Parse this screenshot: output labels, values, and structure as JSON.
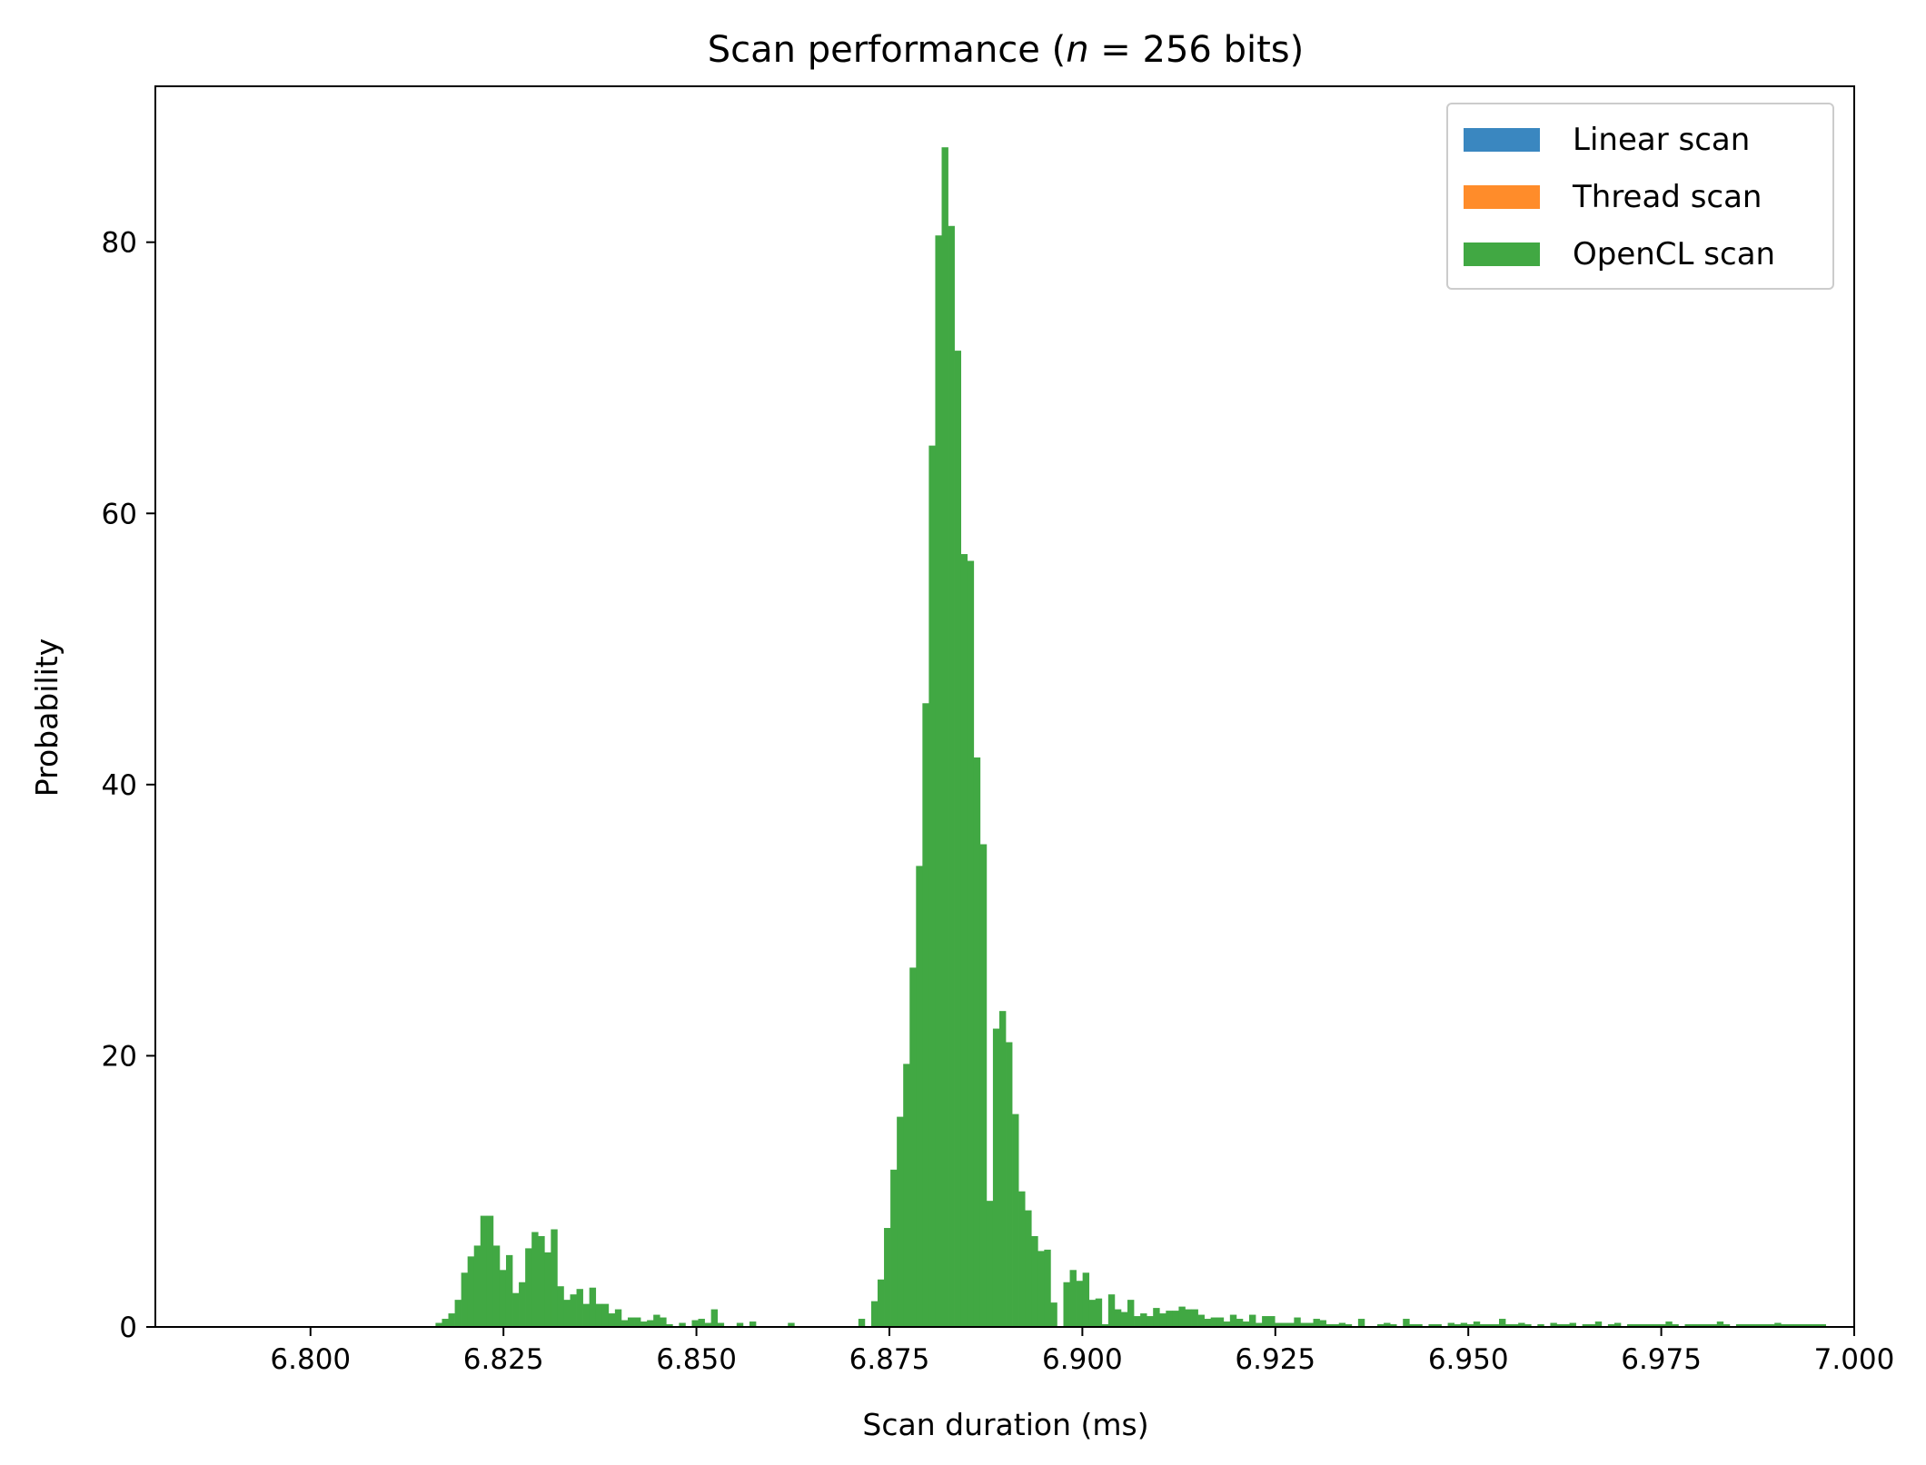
{
  "chart_data": {
    "type": "bar",
    "title_prefix": "Scan performance (",
    "title_italic": "n",
    "title_suffix": " = 256 bits)",
    "xlabel": "Scan duration (ms)",
    "ylabel": "Probability",
    "xlim": [
      6.7799,
      7.0
    ],
    "ylim": [
      0,
      91.5
    ],
    "xticks": [
      6.8,
      6.825,
      6.85,
      6.875,
      6.9,
      6.925,
      6.95,
      6.975,
      7.0
    ],
    "xtick_labels": [
      "6.800",
      "6.825",
      "6.850",
      "6.875",
      "6.900",
      "6.925",
      "6.950",
      "6.975",
      "7.000"
    ],
    "yticks": [
      0,
      20,
      40,
      60,
      80
    ],
    "ytick_labels": [
      "0",
      "20",
      "40",
      "60",
      "80"
    ],
    "grid": false,
    "legend_position": "top-right",
    "series": [
      {
        "name": "Linear scan",
        "color": "#3a87c0",
        "bins": []
      },
      {
        "name": "Thread scan",
        "color": "#ff8c2a",
        "bins": []
      },
      {
        "name": "OpenCL scan",
        "color": "#41a843",
        "bin_start": 6.8162,
        "bin_width": 0.00083,
        "values": [
          0.3,
          0.6,
          1.0,
          2.0,
          4.0,
          5.2,
          6.0,
          8.2,
          8.2,
          6.0,
          4.2,
          5.3,
          2.5,
          3.3,
          5.8,
          7.0,
          6.7,
          5.5,
          7.2,
          3.0,
          2.0,
          2.4,
          2.8,
          1.7,
          2.9,
          1.7,
          1.7,
          1.0,
          1.3,
          0.5,
          0.7,
          0.7,
          0.4,
          0.5,
          0.9,
          0.7,
          0.2,
          0,
          0.3,
          0,
          0.5,
          0.6,
          0.3,
          1.3,
          0.3,
          0,
          0,
          0.3,
          0,
          0.4,
          0,
          0,
          0,
          0,
          0,
          0.3,
          0,
          0,
          0,
          0,
          0,
          0,
          0,
          0,
          0,
          0,
          0.6,
          0,
          1.9,
          3.5,
          7.3,
          11.6,
          15.5,
          19.4,
          26.5,
          34.0,
          46.0,
          65.0,
          80.5,
          87.0,
          81.2,
          72.0,
          57.0,
          56.5,
          42.0,
          35.6,
          9.3,
          22.0,
          23.3,
          21.0,
          15.7,
          10.0,
          8.6,
          6.7,
          5.6,
          5.7,
          1.8,
          0,
          3.3,
          4.2,
          3.4,
          4.0,
          2.0,
          2.1,
          0.2,
          2.4,
          1.3,
          1.1,
          2.0,
          0.8,
          1.0,
          0.8,
          1.4,
          1.0,
          1.2,
          1.2,
          1.5,
          1.3,
          1.3,
          0.9,
          0.6,
          0.7,
          0.7,
          0.4,
          0.9,
          0.6,
          0.4,
          0.9,
          0.3,
          0.8,
          0.8,
          0.3,
          0.3,
          0.3,
          0.7,
          0.3,
          0.3,
          0.6,
          0.5,
          0.2,
          0.2,
          0.3,
          0.2,
          0,
          0.6,
          0,
          0,
          0.2,
          0.3,
          0.2,
          0,
          0.6,
          0.2,
          0.2,
          0,
          0.2,
          0.2,
          0,
          0.3,
          0.2,
          0.3,
          0.2,
          0.4,
          0.2,
          0.2,
          0.2,
          0.6,
          0.2,
          0.2,
          0.3,
          0.2,
          0,
          0.2,
          0,
          0.3,
          0.2,
          0.2,
          0.3,
          0,
          0.2,
          0.2,
          0.4,
          0,
          0.2,
          0.3,
          0,
          0.2,
          0.2,
          0.2,
          0.2,
          0.2,
          0.2,
          0.4,
          0.2,
          0,
          0.2,
          0.2,
          0.2,
          0.2,
          0.2,
          0.4,
          0.2,
          0,
          0.2,
          0.2,
          0.2,
          0.2,
          0.2,
          0.2,
          0.3,
          0.2,
          0.2,
          0.2,
          0.2,
          0.2,
          0.2,
          0.2
        ]
      }
    ]
  }
}
